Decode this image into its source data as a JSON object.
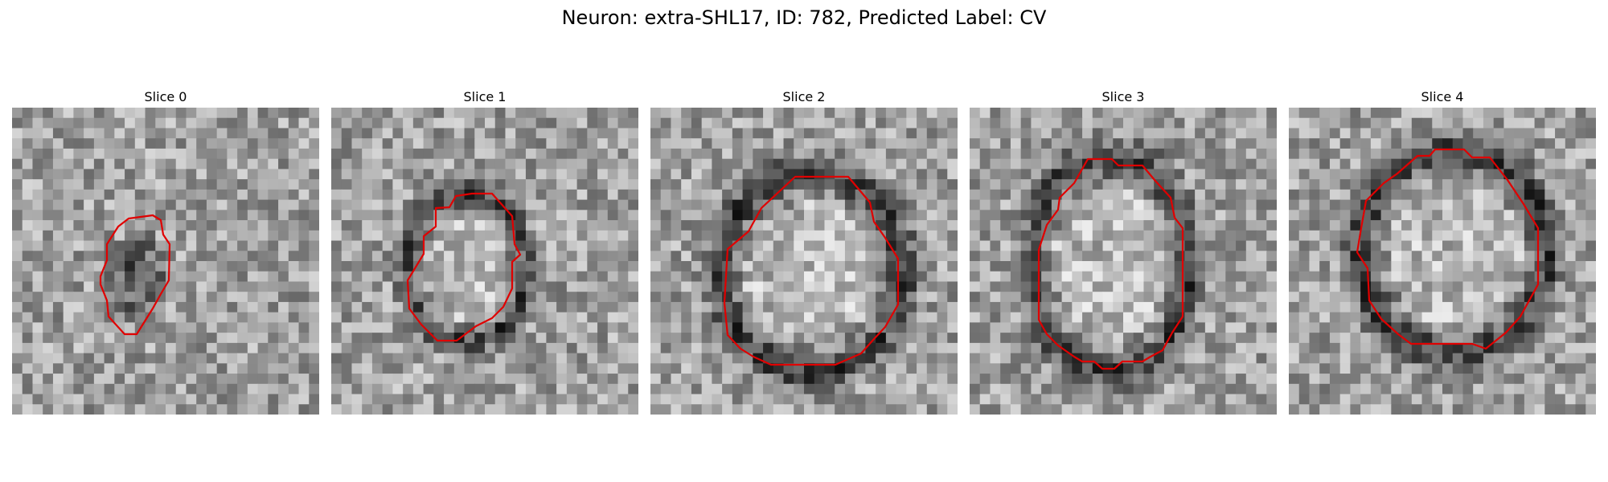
{
  "figure": {
    "title": "Neuron: extra-SHL17, ID: 782, Predicted Label: CV"
  },
  "colors": {
    "contour": "#e00000",
    "background": "#ffffff"
  },
  "panels": [
    {
      "title": "Slice 0"
    },
    {
      "title": "Slice 1"
    },
    {
      "title": "Slice 2"
    },
    {
      "title": "Slice 3"
    },
    {
      "title": "Slice 4"
    }
  ]
}
